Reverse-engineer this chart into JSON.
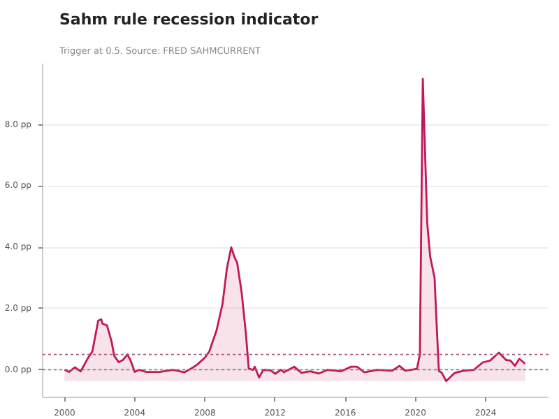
{
  "chart_data": {
    "type": "line",
    "title": "Sahm rule recession indicator",
    "subtitle": "Trigger at 0.5. Source: FRED SAHMCURRENT",
    "x": [
      "2000-01",
      "2000-04",
      "2000-08",
      "2000-12",
      "2001-05",
      "2001-08",
      "2001-12",
      "2002-02",
      "2002-03",
      "2002-06",
      "2002-09",
      "2002-11",
      "2003-02",
      "2003-05",
      "2003-08",
      "2003-10",
      "2004-01",
      "2004-04",
      "2004-09",
      "2005-06",
      "2006-03",
      "2006-11",
      "2007-04",
      "2007-08",
      "2008-01",
      "2008-04",
      "2008-09",
      "2009-01",
      "2009-04",
      "2009-07",
      "2009-09",
      "2009-11",
      "2010-02",
      "2010-05",
      "2010-07",
      "2010-10",
      "2010-11",
      "2011-02",
      "2011-05",
      "2011-10",
      "2012-01",
      "2012-05",
      "2012-07",
      "2013-02",
      "2013-07",
      "2014-01",
      "2014-07",
      "2015-01",
      "2015-10",
      "2016-05",
      "2016-09",
      "2017-02",
      "2017-11",
      "2018-09",
      "2019-02",
      "2019-06",
      "2020-02",
      "2020-04",
      "2020-06",
      "2020-09",
      "2020-11",
      "2021-02",
      "2021-03",
      "2021-05",
      "2021-07",
      "2021-10",
      "2022-02",
      "2022-04",
      "2022-10",
      "2023-05",
      "2023-11",
      "2024-04",
      "2024-10",
      "2025-03",
      "2025-06",
      "2025-09",
      "2025-12",
      "2026-04"
    ],
    "series": [
      {
        "color": "#c2185b",
        "lower": [
          -0.37,
          -0.37,
          -0.37,
          -0.37,
          -0.37,
          -0.37,
          -0.37,
          -0.37,
          -0.37,
          -0.37,
          -0.37,
          -0.37,
          -0.37,
          -0.37,
          -0.37,
          -0.37,
          -0.37,
          -0.37,
          -0.37,
          -0.37,
          -0.37,
          -0.37,
          -0.37,
          -0.37,
          -0.37,
          -0.37,
          -0.37,
          -0.37,
          -0.37,
          -0.37,
          -0.37,
          -0.37,
          -0.37,
          -0.37,
          -0.37,
          -0.37,
          -0.37,
          -0.37,
          -0.37,
          -0.37,
          -0.37,
          -0.37,
          -0.37,
          -0.37,
          -0.37,
          -0.37,
          -0.37,
          -0.37,
          -0.37,
          -0.37,
          -0.37,
          -0.37,
          -0.37,
          -0.37,
          -0.37,
          -0.37,
          -0.37,
          -0.37,
          -0.37,
          -0.37,
          -0.37,
          -0.37,
          -0.37,
          -0.37,
          -0.37,
          -0.37,
          -0.37,
          -0.37,
          -0.37,
          -0.37,
          -0.37,
          -0.37,
          -0.37,
          -0.37,
          -0.37,
          -0.37,
          -0.37,
          -0.37
        ],
        "upper": [
          0.0,
          -0.07,
          0.08,
          -0.05,
          0.38,
          0.6,
          1.6,
          1.65,
          1.5,
          1.45,
          0.95,
          0.45,
          0.25,
          0.32,
          0.5,
          0.32,
          -0.07,
          0.0,
          -0.07,
          -0.07,
          0.0,
          -0.08,
          0.05,
          0.18,
          0.4,
          0.6,
          1.3,
          2.15,
          3.3,
          4.0,
          3.7,
          3.5,
          2.55,
          1.2,
          0.04,
          0.0,
          0.1,
          -0.25,
          0.0,
          -0.02,
          -0.13,
          0.0,
          -0.08,
          0.1,
          -0.1,
          -0.05,
          -0.12,
          0.0,
          -0.05,
          0.1,
          0.1,
          -0.08,
          0.0,
          -0.03,
          0.13,
          -0.03,
          0.03,
          0.5,
          9.5,
          4.8,
          3.7,
          3.0,
          2.0,
          -0.04,
          -0.1,
          -0.37,
          -0.18,
          -0.1,
          -0.03,
          0.0,
          0.24,
          0.3,
          0.56,
          0.32,
          0.3,
          0.13,
          0.36,
          0.2
        ],
        "values": [
          0.0,
          -0.07,
          0.08,
          -0.05,
          0.38,
          0.6,
          1.6,
          1.65,
          1.5,
          1.45,
          0.95,
          0.45,
          0.25,
          0.32,
          0.5,
          0.32,
          -0.07,
          0.0,
          -0.07,
          -0.07,
          0.0,
          -0.08,
          0.05,
          0.18,
          0.4,
          0.6,
          1.3,
          2.15,
          3.3,
          4.0,
          3.7,
          3.5,
          2.55,
          1.2,
          0.04,
          0.0,
          0.1,
          -0.25,
          0.0,
          -0.02,
          -0.13,
          0.0,
          -0.08,
          0.1,
          -0.1,
          -0.05,
          -0.12,
          0.0,
          -0.05,
          0.1,
          0.1,
          -0.08,
          0.0,
          -0.03,
          0.13,
          -0.03,
          0.03,
          0.5,
          9.5,
          4.8,
          3.7,
          3.0,
          2.0,
          -0.04,
          -0.1,
          -0.37,
          -0.18,
          -0.1,
          -0.03,
          0.0,
          0.24,
          0.3,
          0.56,
          0.32,
          0.3,
          0.13,
          0.36,
          0.2
        ]
      }
    ],
    "xlim": [
      "1998-10",
      "2027-08"
    ],
    "xticks": [
      "2000",
      "2004",
      "2008",
      "2012",
      "2016",
      "2020",
      "2024"
    ],
    "ylim": [
      -0.9,
      10
    ],
    "yticks": [
      {
        "value": 0,
        "label": "0.0 pp"
      },
      {
        "value": 2,
        "label": "2.0 pp"
      },
      {
        "value": 4,
        "label": "4.0 pp"
      },
      {
        "value": 6,
        "label": "6.0 pp"
      },
      {
        "value": 8,
        "label": "8.0 pp"
      }
    ],
    "ref_lines": [
      {
        "axis": "y",
        "value": 0.5,
        "color": "#b05a78",
        "line_style": "dotted"
      },
      {
        "axis": "y",
        "value": 0,
        "color": "#777777",
        "line_style": "dotted"
      }
    ],
    "grid": true
  }
}
